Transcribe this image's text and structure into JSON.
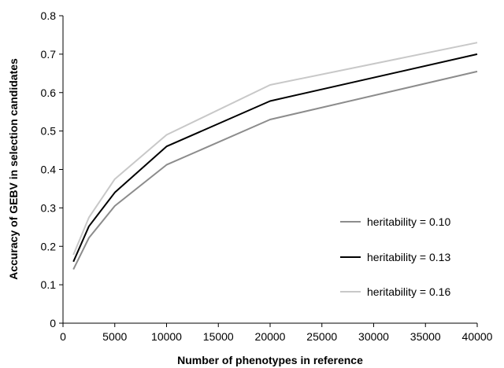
{
  "chart_data": {
    "type": "line",
    "xlabel": "Number of phenotypes in reference",
    "ylabel": "Accuracy of GEBV in selection candidates",
    "xlim": [
      0,
      40000
    ],
    "ylim": [
      0,
      0.8
    ],
    "x_ticks": [
      "0",
      "5000",
      "10000",
      "15000",
      "20000",
      "25000",
      "30000",
      "35000",
      "40000"
    ],
    "y_ticks": [
      "0",
      "0.1",
      "0.2",
      "0.3",
      "0.4",
      "0.5",
      "0.6",
      "0.7",
      "0.8"
    ],
    "grid": false,
    "legend_position": "right",
    "x": [
      1000,
      2500,
      5000,
      10000,
      20000,
      40000
    ],
    "series": [
      {
        "name": "heritability = 0.10",
        "color": "#8c8c8c",
        "values": [
          0.14,
          0.222,
          0.305,
          0.412,
          0.53,
          0.655
        ]
      },
      {
        "name": "heritability = 0.13",
        "color": "#000000",
        "values": [
          0.16,
          0.252,
          0.34,
          0.46,
          0.578,
          0.7
        ]
      },
      {
        "name": "heritability = 0.16",
        "color": "#c8c8c8",
        "values": [
          0.178,
          0.275,
          0.375,
          0.49,
          0.62,
          0.73
        ]
      }
    ]
  }
}
